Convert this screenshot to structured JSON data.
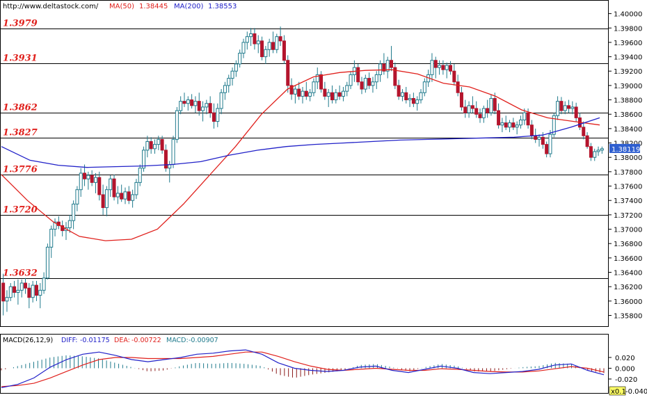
{
  "chart_data": [
    {
      "type": "candlestick",
      "header": {
        "url": "http://www.deltastock.com/",
        "ma50_label": "MA(50)",
        "ma50_value": "1.38445",
        "ma200_label": "MA(200)",
        "ma200_value": "1.38553"
      },
      "ylim": [
        1.3565,
        1.4018
      ],
      "y_ticks": [
        "1.40000",
        "1.39800",
        "1.39600",
        "1.39400",
        "1.39200",
        "1.39000",
        "1.38800",
        "1.38600",
        "1.38400",
        "1.38200",
        "1.38000",
        "1.37800",
        "1.37600",
        "1.37400",
        "1.37200",
        "1.37000",
        "1.36800",
        "1.36600",
        "1.36400",
        "1.36200",
        "1.36000",
        "1.35800"
      ],
      "current_price": "1.38119",
      "levels": [
        {
          "label": "1.3979",
          "value": 1.3979
        },
        {
          "label": "1.3931",
          "value": 1.3931
        },
        {
          "label": "1.3862",
          "value": 1.3862
        },
        {
          "label": "1.3827",
          "value": 1.3827
        },
        {
          "label": "1.3776",
          "value": 1.3776
        },
        {
          "label": "1.3720",
          "value": 1.372
        },
        {
          "label": "1.3632",
          "value": 1.3632
        }
      ],
      "series": [
        {
          "name": "MA(50)",
          "color": "#e0201c",
          "values": [
            1.3776,
            1.374,
            1.371,
            1.369,
            1.3684,
            1.3686,
            1.37,
            1.3735,
            1.3775,
            1.3815,
            1.386,
            1.3895,
            1.3912,
            1.3918,
            1.3921,
            1.3922,
            1.3916,
            1.3903,
            1.3898,
            1.3885,
            1.3866,
            1.3855,
            1.385,
            1.3845
          ]
        },
        {
          "name": "MA(200)",
          "color": "#2020c8",
          "values": [
            1.3815,
            1.3796,
            1.3789,
            1.3786,
            1.3787,
            1.3788,
            1.379,
            1.3794,
            1.3803,
            1.381,
            1.3815,
            1.3818,
            1.382,
            1.3822,
            1.3824,
            1.3825,
            1.3826,
            1.3827,
            1.3828,
            1.3831,
            1.3842,
            1.3855
          ]
        }
      ],
      "candles": [
        [
          1.3625,
          1.3638,
          1.358,
          1.36
        ],
        [
          1.36,
          1.3615,
          1.3585,
          1.3605
        ],
        [
          1.3605,
          1.3625,
          1.36,
          1.362
        ],
        [
          1.362,
          1.3628,
          1.3605,
          1.3612
        ],
        [
          1.3612,
          1.363,
          1.3595,
          1.3615
        ],
        [
          1.3615,
          1.363,
          1.3605,
          1.3625
        ],
        [
          1.3625,
          1.3632,
          1.361,
          1.3618
        ],
        [
          1.3618,
          1.3625,
          1.359,
          1.3605
        ],
        [
          1.3605,
          1.3628,
          1.3598,
          1.3622
        ],
        [
          1.3622,
          1.3628,
          1.36,
          1.3608
        ],
        [
          1.3608,
          1.3625,
          1.359,
          1.3615
        ],
        [
          1.3615,
          1.364,
          1.361,
          1.3632
        ],
        [
          1.3632,
          1.368,
          1.363,
          1.3675
        ],
        [
          1.3675,
          1.3705,
          1.366,
          1.37
        ],
        [
          1.37,
          1.3715,
          1.369,
          1.371
        ],
        [
          1.371,
          1.3718,
          1.37,
          1.3705
        ],
        [
          1.3705,
          1.3712,
          1.369,
          1.3698
        ],
        [
          1.3698,
          1.371,
          1.3685,
          1.3702
        ],
        [
          1.3702,
          1.372,
          1.3695,
          1.3712
        ],
        [
          1.3712,
          1.374,
          1.37,
          1.3735
        ],
        [
          1.3735,
          1.376,
          1.3725,
          1.3755
        ],
        [
          1.3755,
          1.3785,
          1.3745,
          1.3778
        ],
        [
          1.3778,
          1.379,
          1.376,
          1.377
        ],
        [
          1.377,
          1.378,
          1.3755,
          1.3775
        ],
        [
          1.3775,
          1.3782,
          1.376,
          1.3765
        ],
        [
          1.3765,
          1.3778,
          1.375,
          1.3772
        ],
        [
          1.3772,
          1.378,
          1.374,
          1.3748
        ],
        [
          1.3748,
          1.3762,
          1.372,
          1.373
        ],
        [
          1.373,
          1.376,
          1.3718,
          1.3755
        ],
        [
          1.3755,
          1.3775,
          1.3745,
          1.377
        ],
        [
          1.377,
          1.3776,
          1.374,
          1.3745
        ],
        [
          1.3745,
          1.376,
          1.3735,
          1.375
        ],
        [
          1.375,
          1.3762,
          1.3738,
          1.3742
        ],
        [
          1.3742,
          1.3758,
          1.3735,
          1.3752
        ],
        [
          1.3752,
          1.376,
          1.3735,
          1.374
        ],
        [
          1.374,
          1.3755,
          1.373,
          1.3748
        ],
        [
          1.3748,
          1.377,
          1.3742,
          1.3765
        ],
        [
          1.3765,
          1.379,
          1.376,
          1.3785
        ],
        [
          1.3785,
          1.3815,
          1.378,
          1.381
        ],
        [
          1.381,
          1.383,
          1.38,
          1.3822
        ],
        [
          1.3822,
          1.3828,
          1.3805,
          1.3812
        ],
        [
          1.3812,
          1.3825,
          1.3805,
          1.3818
        ],
        [
          1.3818,
          1.383,
          1.381,
          1.3825
        ],
        [
          1.3825,
          1.383,
          1.3805,
          1.381
        ],
        [
          1.381,
          1.3818,
          1.378,
          1.3785
        ],
        [
          1.3785,
          1.3795,
          1.3765,
          1.379
        ],
        [
          1.379,
          1.383,
          1.3785,
          1.3825
        ],
        [
          1.3825,
          1.387,
          1.382,
          1.3865
        ],
        [
          1.3865,
          1.3885,
          1.386,
          1.3878
        ],
        [
          1.3878,
          1.389,
          1.387,
          1.3875
        ],
        [
          1.3875,
          1.3885,
          1.3865,
          1.388
        ],
        [
          1.388,
          1.3888,
          1.3868,
          1.3872
        ],
        [
          1.3872,
          1.3885,
          1.3862,
          1.3878
        ],
        [
          1.3878,
          1.389,
          1.3858,
          1.3865
        ],
        [
          1.3865,
          1.3878,
          1.385,
          1.387
        ],
        [
          1.387,
          1.388,
          1.386,
          1.3875
        ],
        [
          1.3875,
          1.3885,
          1.3855,
          1.3862
        ],
        [
          1.3862,
          1.3875,
          1.384,
          1.385
        ],
        [
          1.385,
          1.3875,
          1.3842,
          1.3868
        ],
        [
          1.3868,
          1.3895,
          1.386,
          1.389
        ],
        [
          1.389,
          1.3905,
          1.388,
          1.39
        ],
        [
          1.39,
          1.3915,
          1.389,
          1.391
        ],
        [
          1.391,
          1.3925,
          1.39,
          1.392
        ],
        [
          1.392,
          1.3935,
          1.3912,
          1.393
        ],
        [
          1.393,
          1.395,
          1.3925,
          1.3945
        ],
        [
          1.3945,
          1.3965,
          1.3938,
          1.396
        ],
        [
          1.396,
          1.3975,
          1.395,
          1.3968
        ],
        [
          1.3968,
          1.398,
          1.3955,
          1.3972
        ],
        [
          1.3972,
          1.398,
          1.395,
          1.3958
        ],
        [
          1.3958,
          1.397,
          1.3945,
          1.3962
        ],
        [
          1.3962,
          1.3968,
          1.3935,
          1.394
        ],
        [
          1.394,
          1.3955,
          1.393,
          1.395
        ],
        [
          1.395,
          1.3965,
          1.394,
          1.396
        ],
        [
          1.396,
          1.3975,
          1.3945,
          1.395
        ],
        [
          1.395,
          1.3972,
          1.3945,
          1.3968
        ],
        [
          1.3968,
          1.3982,
          1.3955,
          1.3962
        ],
        [
          1.3962,
          1.397,
          1.393,
          1.3935
        ],
        [
          1.3935,
          1.3942,
          1.389,
          1.39
        ],
        [
          1.39,
          1.391,
          1.388,
          1.3888
        ],
        [
          1.3888,
          1.39,
          1.3875,
          1.3895
        ],
        [
          1.3895,
          1.3905,
          1.388,
          1.3885
        ],
        [
          1.3885,
          1.3898,
          1.3875,
          1.3892
        ],
        [
          1.3892,
          1.3905,
          1.388,
          1.3885
        ],
        [
          1.3885,
          1.3895,
          1.3878,
          1.389
        ],
        [
          1.389,
          1.391,
          1.3885,
          1.3905
        ],
        [
          1.3905,
          1.3925,
          1.3895,
          1.3915
        ],
        [
          1.3915,
          1.392,
          1.389,
          1.3895
        ],
        [
          1.3895,
          1.3905,
          1.388,
          1.3885
        ],
        [
          1.3885,
          1.3895,
          1.387,
          1.389
        ],
        [
          1.389,
          1.39,
          1.3875,
          1.388
        ],
        [
          1.388,
          1.3895,
          1.3875,
          1.389
        ],
        [
          1.389,
          1.39,
          1.388,
          1.3885
        ],
        [
          1.3885,
          1.3898,
          1.3878,
          1.3892
        ],
        [
          1.3892,
          1.3905,
          1.3885,
          1.39
        ],
        [
          1.39,
          1.392,
          1.3895,
          1.3915
        ],
        [
          1.3915,
          1.3935,
          1.3905,
          1.3925
        ],
        [
          1.3925,
          1.393,
          1.39,
          1.3905
        ],
        [
          1.3905,
          1.3912,
          1.3888,
          1.3895
        ],
        [
          1.3895,
          1.3915,
          1.389,
          1.391
        ],
        [
          1.391,
          1.3918,
          1.3895,
          1.39
        ],
        [
          1.39,
          1.3912,
          1.389,
          1.3905
        ],
        [
          1.3905,
          1.392,
          1.3895,
          1.3915
        ],
        [
          1.3915,
          1.3935,
          1.3905,
          1.393
        ],
        [
          1.393,
          1.3945,
          1.3915,
          1.392
        ],
        [
          1.392,
          1.394,
          1.391,
          1.3935
        ],
        [
          1.3935,
          1.3955,
          1.392,
          1.3925
        ],
        [
          1.3925,
          1.3932,
          1.3895,
          1.39
        ],
        [
          1.39,
          1.3908,
          1.388,
          1.3885
        ],
        [
          1.3885,
          1.3895,
          1.3878,
          1.389
        ],
        [
          1.389,
          1.3898,
          1.3875,
          1.388
        ],
        [
          1.388,
          1.3888,
          1.387,
          1.3882
        ],
        [
          1.3882,
          1.389,
          1.387,
          1.3875
        ],
        [
          1.3875,
          1.3885,
          1.3865,
          1.388
        ],
        [
          1.388,
          1.3895,
          1.3875,
          1.389
        ],
        [
          1.389,
          1.391,
          1.3885,
          1.3905
        ],
        [
          1.3905,
          1.3922,
          1.3898,
          1.3915
        ],
        [
          1.3915,
          1.3945,
          1.3905,
          1.3935
        ],
        [
          1.3935,
          1.394,
          1.391,
          1.3925
        ],
        [
          1.3925,
          1.3935,
          1.3915,
          1.3928
        ],
        [
          1.3928,
          1.3935,
          1.3915,
          1.3922
        ],
        [
          1.3922,
          1.3932,
          1.391,
          1.3928
        ],
        [
          1.3928,
          1.3934,
          1.3915,
          1.392
        ],
        [
          1.392,
          1.393,
          1.39,
          1.3905
        ],
        [
          1.3905,
          1.3915,
          1.3885,
          1.389
        ],
        [
          1.389,
          1.3898,
          1.3865,
          1.387
        ],
        [
          1.387,
          1.388,
          1.3855,
          1.3862
        ],
        [
          1.3862,
          1.3878,
          1.3855,
          1.3872
        ],
        [
          1.3872,
          1.3885,
          1.3862,
          1.3868
        ],
        [
          1.3868,
          1.3878,
          1.3855,
          1.386
        ],
        [
          1.386,
          1.3868,
          1.3848,
          1.3855
        ],
        [
          1.3855,
          1.3872,
          1.3848,
          1.3868
        ],
        [
          1.3868,
          1.388,
          1.3855,
          1.3862
        ],
        [
          1.3862,
          1.3888,
          1.3858,
          1.3882
        ],
        [
          1.3882,
          1.389,
          1.386,
          1.3865
        ],
        [
          1.3865,
          1.3875,
          1.384,
          1.3845
        ],
        [
          1.3845,
          1.3855,
          1.3835,
          1.3848
        ],
        [
          1.3848,
          1.3858,
          1.3838,
          1.3842
        ],
        [
          1.3842,
          1.3852,
          1.3835,
          1.3848
        ],
        [
          1.3848,
          1.3855,
          1.3838,
          1.3842
        ],
        [
          1.3842,
          1.385,
          1.3832,
          1.3845
        ],
        [
          1.3845,
          1.3858,
          1.384,
          1.3852
        ],
        [
          1.3852,
          1.3868,
          1.3845,
          1.3862
        ],
        [
          1.3862,
          1.3868,
          1.384,
          1.3845
        ],
        [
          1.3845,
          1.3852,
          1.3825,
          1.383
        ],
        [
          1.383,
          1.384,
          1.382,
          1.3825
        ],
        [
          1.3825,
          1.3832,
          1.3815,
          1.3828
        ],
        [
          1.3828,
          1.3835,
          1.3812,
          1.3818
        ],
        [
          1.3818,
          1.3822,
          1.38,
          1.3805
        ],
        [
          1.3805,
          1.3838,
          1.38,
          1.3832
        ],
        [
          1.3832,
          1.3862,
          1.3828,
          1.3858
        ],
        [
          1.3858,
          1.3885,
          1.3852,
          1.3878
        ],
        [
          1.3878,
          1.3884,
          1.386,
          1.3865
        ],
        [
          1.3865,
          1.3878,
          1.386,
          1.3872
        ],
        [
          1.3872,
          1.388,
          1.3862,
          1.3868
        ],
        [
          1.3868,
          1.3878,
          1.386,
          1.387
        ],
        [
          1.387,
          1.3876,
          1.385,
          1.3855
        ],
        [
          1.3855,
          1.3862,
          1.3838,
          1.3842
        ],
        [
          1.3842,
          1.385,
          1.3825,
          1.383
        ],
        [
          1.383,
          1.3835,
          1.3812,
          1.3815
        ],
        [
          1.3815,
          1.382,
          1.3795,
          1.38
        ],
        [
          1.38,
          1.3812,
          1.3795,
          1.3808
        ],
        [
          1.3808,
          1.3815,
          1.3802,
          1.381
        ],
        [
          1.381,
          1.3815,
          1.3805,
          1.3812
        ]
      ]
    },
    {
      "type": "macd",
      "label": "MACD(26,12,9)",
      "diff_label": "DIFF:",
      "diff_value": "-0.01175",
      "dea_label": "DEA:",
      "dea_value": "-0.00722",
      "macd_label": "MACD:",
      "macd_value": "-0.00907",
      "ylim": [
        -0.042,
        0.038
      ],
      "y_ticks": [
        "0.020",
        "0.000",
        "-0.020"
      ],
      "bottom_label": "x0.1",
      "bottom_tick": "-0.040",
      "diff": [
        -0.036,
        -0.03,
        -0.018,
        0.002,
        0.016,
        0.026,
        0.03,
        0.024,
        0.016,
        0.012,
        0.016,
        0.02,
        0.026,
        0.028,
        0.032,
        0.034,
        0.026,
        0.01,
        0.0,
        -0.004,
        -0.006,
        -0.004,
        0.002,
        0.004,
        -0.004,
        -0.008,
        -0.002,
        0.004,
        0.0,
        -0.008,
        -0.01,
        -0.008,
        -0.006,
        -0.002,
        0.006,
        0.008,
        -0.004,
        -0.012
      ],
      "dea": [
        -0.034,
        -0.032,
        -0.028,
        -0.018,
        -0.006,
        0.006,
        0.016,
        0.02,
        0.02,
        0.018,
        0.018,
        0.018,
        0.02,
        0.022,
        0.026,
        0.03,
        0.03,
        0.022,
        0.012,
        0.004,
        -0.002,
        -0.004,
        -0.002,
        0.0,
        -0.002,
        -0.004,
        -0.004,
        -0.001,
        -0.002,
        -0.004,
        -0.006,
        -0.007,
        -0.007,
        -0.005,
        -0.001,
        0.003,
        0.0,
        -0.007
      ],
      "histogram": [
        -0.004,
        0.004,
        0.012,
        0.02,
        0.024,
        0.022,
        0.018,
        0.01,
        0.002,
        -0.006,
        -0.004,
        0.004,
        0.01,
        0.008,
        0.01,
        0.008,
        0.004,
        -0.012,
        -0.018,
        -0.012,
        -0.008,
        -0.004,
        0.006,
        0.008,
        0.002,
        -0.006,
        0.002,
        0.008,
        0.004,
        -0.006,
        -0.006,
        -0.002,
        0.002,
        0.004,
        0.01,
        0.008,
        -0.004,
        -0.009
      ]
    }
  ]
}
